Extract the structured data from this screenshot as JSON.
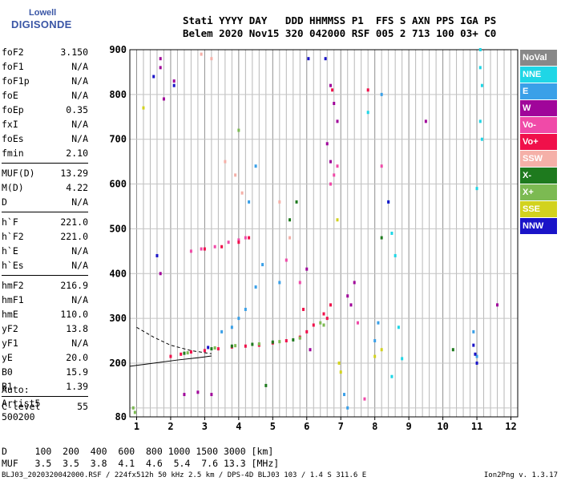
{
  "logo": {
    "line1": "Lowell",
    "line2": "DIGISONDE"
  },
  "header": {
    "line1": "Stati YYYY DAY   DDD HHMMSS P1  FFS S AXN PPS IGA PS",
    "line2": "Belem 2020 Nov15 320 042000 RSF 005 2 713 100 03+ C0"
  },
  "params": [
    {
      "group": [
        {
          "name": "foF2",
          "value": "3.150"
        },
        {
          "name": "foF1",
          "value": "N/A"
        },
        {
          "name": "foF1p",
          "value": "N/A"
        },
        {
          "name": "foE",
          "value": "N/A"
        },
        {
          "name": "foEp",
          "value": "0.35"
        },
        {
          "name": "fxI",
          "value": "N/A"
        },
        {
          "name": "foEs",
          "value": "N/A"
        },
        {
          "name": "fmin",
          "value": "2.10"
        }
      ]
    },
    {
      "group": [
        {
          "name": "MUF(D)",
          "value": "13.29"
        },
        {
          "name": "M(D)",
          "value": "4.22"
        },
        {
          "name": "D",
          "value": "N/A"
        }
      ]
    },
    {
      "group": [
        {
          "name": "h`F",
          "value": "221.0"
        },
        {
          "name": "h`F2",
          "value": "221.0"
        },
        {
          "name": "h`E",
          "value": "N/A"
        },
        {
          "name": "h`Es",
          "value": "N/A"
        }
      ]
    },
    {
      "group": [
        {
          "name": "hmF2",
          "value": "216.9"
        },
        {
          "name": "hmF1",
          "value": "N/A"
        },
        {
          "name": "hmE",
          "value": "110.0"
        },
        {
          "name": "yF2",
          "value": "13.8"
        },
        {
          "name": "yF1",
          "value": "N/A"
        },
        {
          "name": "yE",
          "value": "20.0"
        },
        {
          "name": "B0",
          "value": "15.9"
        },
        {
          "name": "B1",
          "value": "1.39"
        }
      ]
    },
    {
      "group": [
        {
          "name": "C-level",
          "value": "55"
        }
      ]
    }
  ],
  "auto": {
    "line1": "Auto:",
    "line2": "Artist5",
    "line3": "500200"
  },
  "footer": {
    "line1": "D     100  200  400  600  800 1000 1500 3000 [km]",
    "line2": "MUF   3.5  3.5  3.8  4.1  4.6  5.4  7.6 13.3 [MHz]"
  },
  "fileinfo": "BLJ03_2020320042000.RSF / 224fx512h 50 kHz 2.5 km / DPS-4D BLJ03 103 / 1.4 S 311.6 E",
  "version": "Ion2Png v. 1.3.17",
  "legend": [
    {
      "label": "NoVal",
      "color": "#888888"
    },
    {
      "label": "NNE",
      "color": "#1fd6e6"
    },
    {
      "label": "E",
      "color": "#3aa0e8"
    },
    {
      "label": "W",
      "color": "#a0059a"
    },
    {
      "label": "Vo-",
      "color": "#f04aa8"
    },
    {
      "label": "Vo+",
      "color": "#f0104a"
    },
    {
      "label": "SSW",
      "color": "#f5b0a8"
    },
    {
      "label": "X-",
      "color": "#1e7a1e"
    },
    {
      "label": "X+",
      "color": "#7cba52"
    },
    {
      "label": "SSE",
      "color": "#d2d21e"
    },
    {
      "label": "NNW",
      "color": "#1a14c8"
    }
  ],
  "chart_data": {
    "type": "scatter",
    "title": "",
    "xlabel": "",
    "ylabel": "",
    "xlim": [
      0.8,
      12.2
    ],
    "ylim": [
      80,
      900
    ],
    "xticks": [
      1,
      2,
      3,
      4,
      5,
      6,
      7,
      8,
      9,
      10,
      11,
      12
    ],
    "yticks": [
      200,
      300,
      400,
      500,
      600,
      700,
      800,
      900
    ],
    "ytick_bottom": 80,
    "grid": true,
    "legend_position": "right",
    "series": [
      {
        "name": "NoVal",
        "points": []
      },
      {
        "name": "NNE",
        "points": [
          [
            11.1,
            900
          ],
          [
            11.1,
            860
          ],
          [
            11.15,
            820
          ],
          [
            11.1,
            740
          ],
          [
            11.15,
            700
          ],
          [
            8.4,
            560
          ],
          [
            8.5,
            490
          ],
          [
            8.6,
            440
          ],
          [
            8.7,
            280
          ],
          [
            8.8,
            210
          ],
          [
            8.5,
            170
          ],
          [
            11.0,
            590
          ],
          [
            7.8,
            760
          ]
        ]
      },
      {
        "name": "E",
        "points": [
          [
            3.5,
            270
          ],
          [
            3.8,
            280
          ],
          [
            4.0,
            300
          ],
          [
            4.2,
            320
          ],
          [
            4.5,
            370
          ],
          [
            4.7,
            420
          ],
          [
            4.3,
            560
          ],
          [
            4.5,
            640
          ],
          [
            5.2,
            380
          ],
          [
            7.1,
            130
          ],
          [
            7.2,
            100
          ],
          [
            8.2,
            800
          ],
          [
            8.1,
            290
          ],
          [
            8.0,
            250
          ],
          [
            10.9,
            270
          ],
          [
            11.0,
            215
          ]
        ]
      },
      {
        "name": "W",
        "points": [
          [
            1.7,
            880
          ],
          [
            1.7,
            860
          ],
          [
            1.8,
            790
          ],
          [
            2.1,
            830
          ],
          [
            6.7,
            820
          ],
          [
            6.8,
            780
          ],
          [
            6.9,
            740
          ],
          [
            6.6,
            690
          ],
          [
            6.7,
            650
          ],
          [
            7.2,
            350
          ],
          [
            7.3,
            330
          ],
          [
            7.4,
            380
          ],
          [
            9.5,
            740
          ],
          [
            11.6,
            330
          ],
          [
            1.7,
            400
          ],
          [
            2.4,
            130
          ],
          [
            2.8,
            135
          ],
          [
            3.2,
            130
          ],
          [
            6.1,
            230
          ],
          [
            6.0,
            410
          ]
        ]
      },
      {
        "name": "Vo-",
        "points": [
          [
            2.6,
            450
          ],
          [
            2.9,
            455
          ],
          [
            3.3,
            460
          ],
          [
            3.7,
            470
          ],
          [
            4.0,
            475
          ],
          [
            4.2,
            480
          ],
          [
            6.8,
            620
          ],
          [
            6.9,
            640
          ],
          [
            6.7,
            600
          ],
          [
            5.4,
            430
          ],
          [
            5.8,
            380
          ],
          [
            7.5,
            290
          ],
          [
            7.7,
            120
          ],
          [
            8.2,
            640
          ]
        ]
      },
      {
        "name": "Vo+",
        "points": [
          [
            2.0,
            215
          ],
          [
            2.3,
            220
          ],
          [
            2.6,
            225
          ],
          [
            3.0,
            228
          ],
          [
            3.4,
            232
          ],
          [
            3.8,
            236
          ],
          [
            4.2,
            238
          ],
          [
            4.6,
            240
          ],
          [
            5.0,
            245
          ],
          [
            5.4,
            250
          ],
          [
            5.8,
            258
          ],
          [
            6.0,
            270
          ],
          [
            6.2,
            285
          ],
          [
            5.9,
            320
          ],
          [
            6.6,
            300
          ],
          [
            6.7,
            330
          ],
          [
            6.5,
            310
          ],
          [
            3.0,
            455
          ],
          [
            3.5,
            460
          ],
          [
            4.0,
            470
          ],
          [
            4.3,
            480
          ],
          [
            6.75,
            810
          ],
          [
            7.8,
            810
          ]
        ]
      },
      {
        "name": "SSW",
        "points": [
          [
            3.6,
            650
          ],
          [
            3.9,
            620
          ],
          [
            4.1,
            580
          ],
          [
            5.2,
            560
          ],
          [
            5.5,
            480
          ],
          [
            2.9,
            890
          ],
          [
            3.2,
            880
          ]
        ]
      },
      {
        "name": "X-",
        "points": [
          [
            2.4,
            222
          ],
          [
            3.2,
            232
          ],
          [
            3.8,
            238
          ],
          [
            4.4,
            242
          ],
          [
            5.0,
            247
          ],
          [
            5.6,
            252
          ],
          [
            5.7,
            560
          ],
          [
            5.5,
            520
          ],
          [
            8.2,
            480
          ],
          [
            4.8,
            150
          ],
          [
            10.3,
            230
          ]
        ]
      },
      {
        "name": "X+",
        "points": [
          [
            2.5,
            223
          ],
          [
            3.3,
            234
          ],
          [
            3.9,
            239
          ],
          [
            4.6,
            243
          ],
          [
            5.2,
            248
          ],
          [
            5.8,
            256
          ],
          [
            4.0,
            720
          ],
          [
            6.4,
            290
          ],
          [
            6.5,
            285
          ],
          [
            0.9,
            100
          ],
          [
            0.95,
            90
          ]
        ]
      },
      {
        "name": "SSE",
        "points": [
          [
            1.2,
            770
          ],
          [
            6.9,
            520
          ],
          [
            7.0,
            180
          ],
          [
            6.95,
            200
          ],
          [
            8.2,
            230
          ],
          [
            8.0,
            215
          ]
        ]
      },
      {
        "name": "NNW",
        "points": [
          [
            1.5,
            840
          ],
          [
            1.6,
            440
          ],
          [
            2.1,
            820
          ],
          [
            3.1,
            235
          ],
          [
            6.05,
            880
          ],
          [
            6.55,
            880
          ],
          [
            10.9,
            240
          ],
          [
            10.95,
            220
          ],
          [
            11.0,
            200
          ],
          [
            8.4,
            560
          ]
        ]
      }
    ],
    "trace_lines": [
      {
        "style": "dashed",
        "points": [
          [
            1.0,
            280
          ],
          [
            1.5,
            258
          ],
          [
            2.0,
            240
          ],
          [
            2.6,
            228
          ],
          [
            3.2,
            221
          ]
        ]
      },
      {
        "style": "solid",
        "points": [
          [
            0.8,
            193
          ],
          [
            1.5,
            200
          ],
          [
            2.2,
            207
          ],
          [
            2.8,
            212
          ],
          [
            3.2,
            216
          ]
        ]
      }
    ]
  }
}
